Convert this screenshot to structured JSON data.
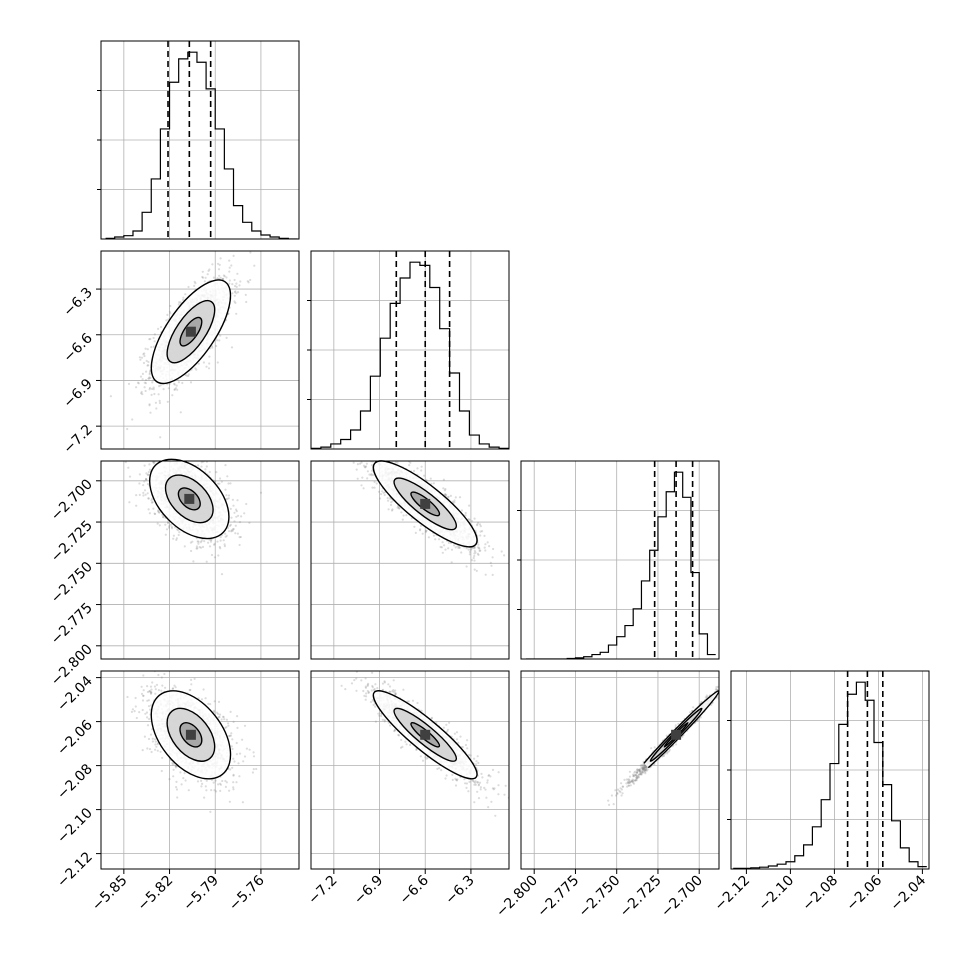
{
  "chart_data": {
    "type": "corner",
    "parameters": [
      "",
      "",
      "",
      ""
    ],
    "quantiles": [
      0.16,
      0.5,
      0.84
    ],
    "grid": true,
    "colors": {
      "line": "#000000",
      "grid": "#b0b0b0",
      "points": "#808080",
      "density": "#404040"
    },
    "ranges": [
      [
        -5.865,
        -5.735
      ],
      [
        -7.35,
        -6.05
      ],
      [
        -2.808,
        -2.688
      ],
      [
        -2.127,
        -2.037
      ]
    ],
    "ticks": [
      [
        "−5.85",
        "−5.82",
        "−5.79",
        "−5.76"
      ],
      [
        "−7.2",
        "−6.9",
        "−6.6",
        "−6.3"
      ],
      [
        "−2.800",
        "−2.775",
        "−2.750",
        "−2.725",
        "−2.700"
      ],
      [
        "−2.12",
        "−2.10",
        "−2.08",
        "−2.06",
        "−2.04"
      ]
    ],
    "tick_values": [
      [
        -5.85,
        -5.82,
        -5.79,
        -5.76
      ],
      [
        -7.2,
        -6.9,
        -6.6,
        -6.3
      ],
      [
        -2.8,
        -2.775,
        -2.75,
        -2.725,
        -2.7
      ],
      [
        -2.12,
        -2.1,
        -2.08,
        -2.06,
        -2.04
      ]
    ],
    "marginals": [
      {
        "bin_edges": [
          -5.862,
          -5.856,
          -5.85,
          -5.844,
          -5.838,
          -5.832,
          -5.826,
          -5.82,
          -5.814,
          -5.808,
          -5.802,
          -5.796,
          -5.79,
          -5.784,
          -5.778,
          -5.772,
          -5.766,
          -5.76,
          -5.754,
          -5.748,
          -5.742,
          -5.736
        ],
        "counts": [
          1,
          3,
          5,
          12,
          40,
          90,
          165,
          235,
          270,
          280,
          265,
          225,
          165,
          105,
          50,
          25,
          12,
          6,
          3,
          1,
          0
        ],
        "quantile_values": [
          -5.821,
          -5.807,
          -5.793
        ]
      },
      {
        "bin_edges": [
          -7.35,
          -7.285,
          -7.22,
          -7.155,
          -7.09,
          -7.025,
          -6.96,
          -6.895,
          -6.83,
          -6.765,
          -6.7,
          -6.635,
          -6.57,
          -6.505,
          -6.44,
          -6.375,
          -6.31,
          -6.245,
          -6.18,
          -6.115,
          -6.05
        ],
        "counts": [
          1,
          3,
          8,
          15,
          30,
          60,
          115,
          175,
          230,
          270,
          295,
          290,
          255,
          190,
          120,
          60,
          22,
          8,
          3,
          1
        ],
        "quantile_values": [
          -6.79,
          -6.6,
          -6.44
        ]
      },
      {
        "bin_edges": [
          -2.805,
          -2.8,
          -2.795,
          -2.79,
          -2.785,
          -2.78,
          -2.775,
          -2.77,
          -2.765,
          -2.76,
          -2.755,
          -2.75,
          -2.745,
          -2.74,
          -2.735,
          -2.73,
          -2.725,
          -2.72,
          -2.715,
          -2.71,
          -2.705,
          -2.7,
          -2.695,
          -2.69
        ],
        "counts": [
          0,
          0,
          0,
          0,
          0,
          1,
          2,
          4,
          8,
          12,
          25,
          40,
          60,
          90,
          140,
          195,
          255,
          300,
          335,
          290,
          155,
          45,
          8
        ],
        "quantile_values": [
          -2.727,
          -2.714,
          -2.704
        ]
      },
      {
        "bin_edges": [
          -2.126,
          -2.122,
          -2.118,
          -2.114,
          -2.11,
          -2.106,
          -2.102,
          -2.098,
          -2.094,
          -2.09,
          -2.086,
          -2.082,
          -2.078,
          -2.074,
          -2.07,
          -2.066,
          -2.062,
          -2.058,
          -2.054,
          -2.05,
          -2.046,
          -2.042,
          -2.038
        ],
        "counts": [
          1,
          1,
          2,
          3,
          5,
          8,
          12,
          22,
          40,
          70,
          115,
          175,
          240,
          290,
          310,
          280,
          210,
          140,
          80,
          35,
          12,
          4
        ],
        "quantile_values": [
          -2.074,
          -2.065,
          -2.058
        ]
      }
    ],
    "pairs": [
      {
        "x": 0,
        "y": 1,
        "mean": [
          -5.806,
          -6.58
        ],
        "std": [
          0.013,
          0.17
        ],
        "corr": 0.7
      },
      {
        "x": 0,
        "y": 2,
        "mean": [
          -5.807,
          -2.711
        ],
        "std": [
          0.013,
          0.012
        ],
        "corr": -0.45
      },
      {
        "x": 1,
        "y": 2,
        "mean": [
          -6.6,
          -2.714
        ],
        "std": [
          0.17,
          0.013
        ],
        "corr": -0.85
      },
      {
        "x": 0,
        "y": 3,
        "mean": [
          -5.806,
          -2.066
        ],
        "std": [
          0.013,
          0.01
        ],
        "corr": -0.45
      },
      {
        "x": 1,
        "y": 3,
        "mean": [
          -6.6,
          -2.066
        ],
        "std": [
          0.17,
          0.01
        ],
        "corr": -0.9
      },
      {
        "x": 2,
        "y": 3,
        "mean": [
          -2.714,
          -2.066
        ],
        "std": [
          0.013,
          0.01
        ],
        "corr": 0.99
      }
    ]
  }
}
